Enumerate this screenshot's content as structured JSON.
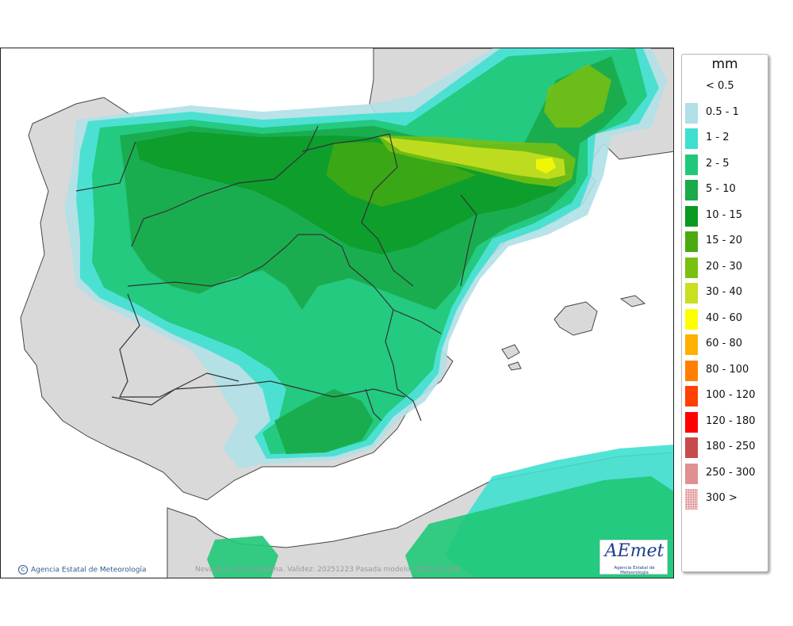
{
  "map": {
    "caption": "Nevada en 24 h máxima. Validez: 20251223 Pasada modelo: 2025122100",
    "credit": "Agencia Estatal de Meteorología",
    "logo_text": "AEmet",
    "logo_subtitle": "Agencia Estatal de Meteorología",
    "land_color": "#d9d9d9",
    "sea_color": "#ffffff",
    "border_color": "#222222"
  },
  "legend": {
    "unit": "mm",
    "items": [
      {
        "label": "< 0.5",
        "color": "#ffffff"
      },
      {
        "label": "0.5 - 1",
        "color": "#b0e0e6"
      },
      {
        "label": "1 - 2",
        "color": "#40e0d0"
      },
      {
        "label": "2 - 5",
        "color": "#20c878"
      },
      {
        "label": "5 - 10",
        "color": "#1aaa4a"
      },
      {
        "label": "10 - 15",
        "color": "#0a9a20"
      },
      {
        "label": "15 - 20",
        "color": "#4aaa10"
      },
      {
        "label": "20 - 30",
        "color": "#7ac010"
      },
      {
        "label": "30 - 40",
        "color": "#c8e020"
      },
      {
        "label": "40 - 60",
        "color": "#ffff00"
      },
      {
        "label": "60 - 80",
        "color": "#ffb000"
      },
      {
        "label": "80 - 100",
        "color": "#ff8000"
      },
      {
        "label": "100 - 120",
        "color": "#ff4000"
      },
      {
        "label": "120 - 180",
        "color": "#ff0000"
      },
      {
        "label": "180 - 250",
        "color": "#c84a4a"
      },
      {
        "label": "250 - 300",
        "color": "#e09090"
      },
      {
        "label": "300 >",
        "color": "#f8d0d0"
      }
    ]
  }
}
